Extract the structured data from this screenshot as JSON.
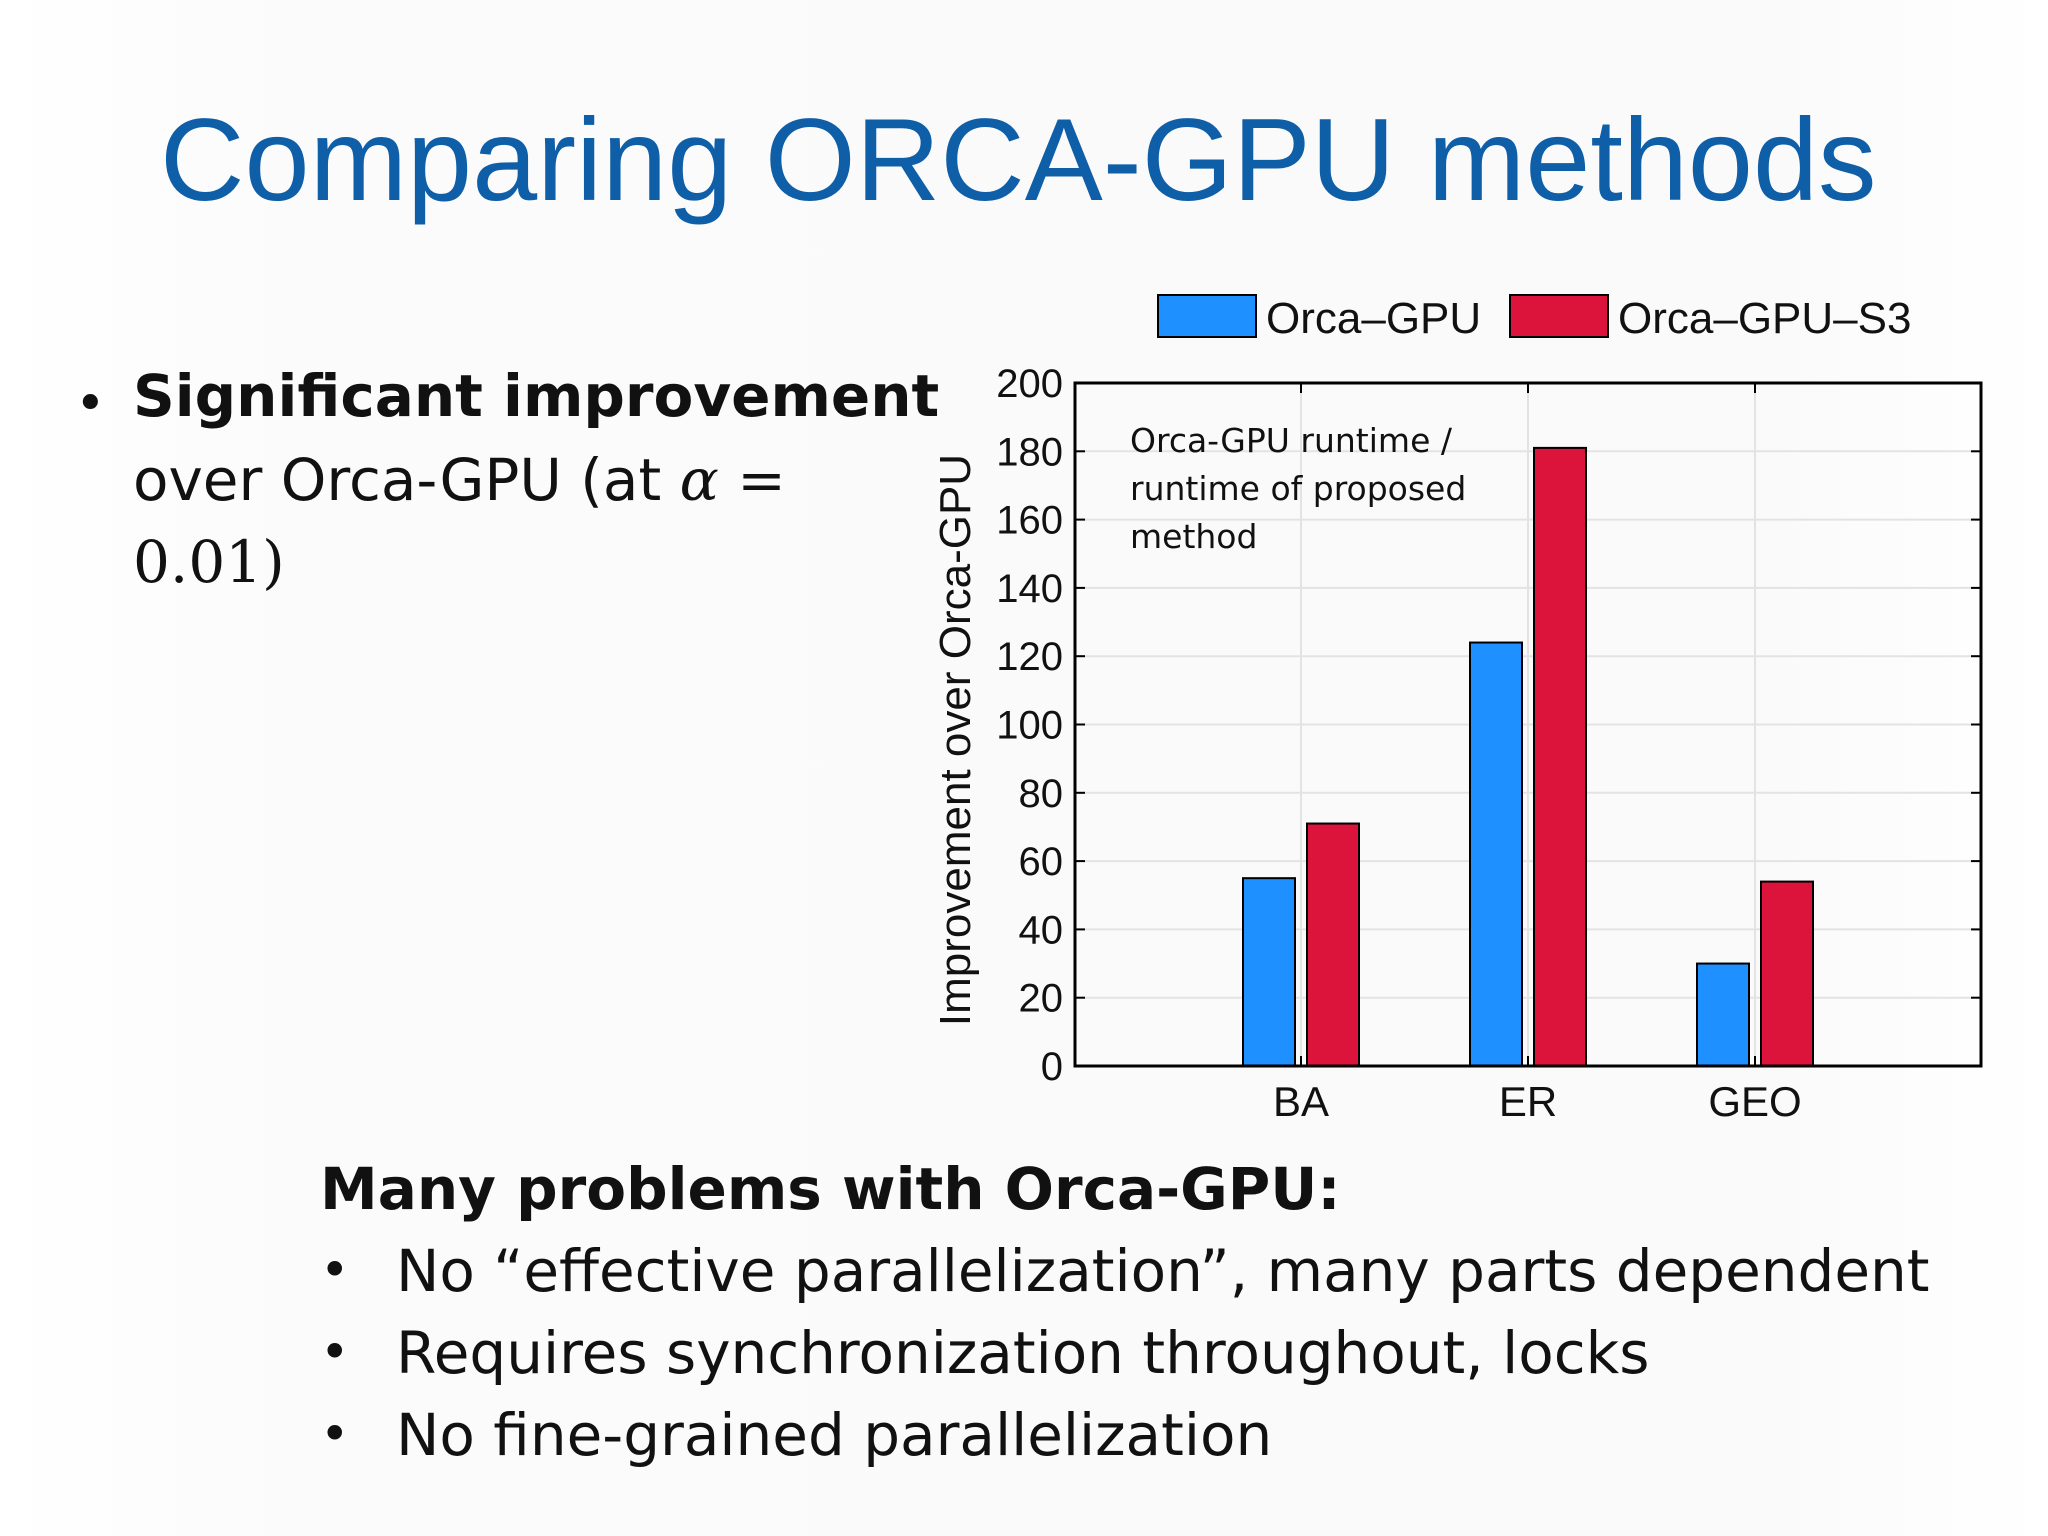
{
  "slide": {
    "title": "Comparing ORCA-GPU methods"
  },
  "bullet": {
    "strong": "Significant improvement",
    "line2_text": "over Orca-GPU (at ",
    "alpha": "α",
    "line2_eq": " =",
    "line3": "0.01)"
  },
  "problems": {
    "heading": "Many problems with Orca-GPU:",
    "items": [
      "No “effective parallelization”, many parts dependent",
      "Requires synchronization throughout, locks",
      "No fine-grained parallelization"
    ]
  },
  "chart_data": {
    "type": "bar",
    "categories": [
      "BA",
      "ER",
      "GEO"
    ],
    "series": [
      {
        "name": "Orca–GPU",
        "values": [
          55,
          124,
          30
        ],
        "color": "#1e90ff"
      },
      {
        "name": "Orca–GPU–S3",
        "values": [
          71,
          181,
          54
        ],
        "color": "#dc143c"
      }
    ],
    "ylabel": "Improvement over Orca-GPU",
    "ylim": [
      0,
      200
    ],
    "yticks": [
      0,
      20,
      40,
      60,
      80,
      100,
      120,
      140,
      160,
      180,
      200
    ],
    "grid": true,
    "legend_position": "top",
    "annotation_lines": [
      "Orca-GPU runtime /",
      "runtime of proposed",
      "method"
    ]
  }
}
